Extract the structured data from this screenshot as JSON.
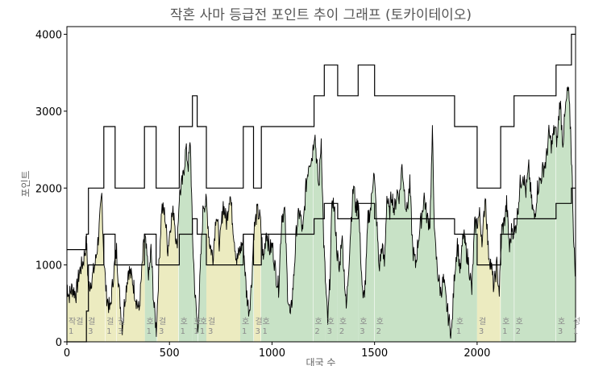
{
  "chart_data": {
    "type": "line",
    "title": "작혼 사마 등급전 포인트 추이 그래프 (토카이테이오)",
    "xlabel": "대국 수",
    "ylabel": "포인트",
    "xlim": [
      0,
      2480
    ],
    "ylim": [
      0,
      4100
    ],
    "xticks": [
      0,
      500,
      1000,
      1500,
      2000
    ],
    "yticks": [
      0,
      1000,
      2000,
      3000,
      4000
    ],
    "grid": false,
    "colors": {
      "jakgeol": "#ecebc0",
      "ho": "#c8e2c6",
      "line": "#000000",
      "threshold": "#000000"
    },
    "segments": [
      {
        "x0": 0,
        "x1": 95,
        "rank": "작걸",
        "level": "1",
        "kind": "jakgeol"
      },
      {
        "x0": 95,
        "x1": 185,
        "rank": "걸",
        "level": "3",
        "kind": "jakgeol"
      },
      {
        "x0": 185,
        "x1": 240,
        "rank": "걸",
        "level": "1",
        "kind": "jakgeol"
      },
      {
        "x0": 240,
        "x1": 380,
        "rank": "걸",
        "level": "3",
        "kind": "jakgeol"
      },
      {
        "x0": 380,
        "x1": 440,
        "rank": "호",
        "level": "1",
        "kind": "ho"
      },
      {
        "x0": 440,
        "x1": 545,
        "rank": "걸",
        "level": "3",
        "kind": "jakgeol"
      },
      {
        "x0": 545,
        "x1": 610,
        "rank": "호",
        "level": "1",
        "kind": "ho"
      },
      {
        "x0": 610,
        "x1": 640,
        "rank": "호",
        "level": "1",
        "kind": "ho"
      },
      {
        "x0": 640,
        "x1": 680,
        "rank": "호",
        "level": "1",
        "kind": "ho"
      },
      {
        "x0": 680,
        "x1": 845,
        "rank": "걸",
        "level": "3",
        "kind": "jakgeol"
      },
      {
        "x0": 845,
        "x1": 910,
        "rank": "호",
        "level": "1",
        "kind": "ho"
      },
      {
        "x0": 910,
        "x1": 945,
        "rank": "걸",
        "level": "3",
        "kind": "jakgeol"
      },
      {
        "x0": 945,
        "x1": 1200,
        "rank": "호",
        "level": "1",
        "kind": "ho"
      },
      {
        "x0": 1200,
        "x1": 1260,
        "rank": "호",
        "level": "2",
        "kind": "ho"
      },
      {
        "x0": 1260,
        "x1": 1320,
        "rank": "호",
        "level": "3",
        "kind": "ho"
      },
      {
        "x0": 1320,
        "x1": 1420,
        "rank": "호",
        "level": "2",
        "kind": "ho"
      },
      {
        "x0": 1420,
        "x1": 1500,
        "rank": "호",
        "level": "3",
        "kind": "ho"
      },
      {
        "x0": 1500,
        "x1": 1890,
        "rank": "호",
        "level": "2",
        "kind": "ho"
      },
      {
        "x0": 1890,
        "x1": 2000,
        "rank": "호",
        "level": "1",
        "kind": "ho"
      },
      {
        "x0": 2000,
        "x1": 2115,
        "rank": "걸",
        "level": "3",
        "kind": "jakgeol"
      },
      {
        "x0": 2115,
        "x1": 2180,
        "rank": "호",
        "level": "1",
        "kind": "ho"
      },
      {
        "x0": 2180,
        "x1": 2385,
        "rank": "호",
        "level": "2",
        "kind": "ho"
      },
      {
        "x0": 2385,
        "x1": 2460,
        "rank": "호",
        "level": "3",
        "kind": "ho"
      },
      {
        "x0": 2460,
        "x1": 2480,
        "rank": "성",
        "level": "1",
        "kind": "ho"
      }
    ],
    "threshold_upper": [
      [
        0,
        1200
      ],
      [
        95,
        1200
      ],
      [
        95,
        1400
      ],
      [
        105,
        1400
      ],
      [
        105,
        2000
      ],
      [
        180,
        2000
      ],
      [
        180,
        2800
      ],
      [
        235,
        2800
      ],
      [
        235,
        2000
      ],
      [
        378,
        2000
      ],
      [
        378,
        2800
      ],
      [
        435,
        2800
      ],
      [
        435,
        2000
      ],
      [
        548,
        2000
      ],
      [
        548,
        2800
      ],
      [
        612,
        2800
      ],
      [
        612,
        3200
      ],
      [
        635,
        3200
      ],
      [
        635,
        2800
      ],
      [
        680,
        2800
      ],
      [
        680,
        2000
      ],
      [
        860,
        2000
      ],
      [
        860,
        2800
      ],
      [
        910,
        2800
      ],
      [
        910,
        2000
      ],
      [
        948,
        2000
      ],
      [
        948,
        2800
      ],
      [
        1205,
        2800
      ],
      [
        1205,
        3200
      ],
      [
        1255,
        3200
      ],
      [
        1255,
        3600
      ],
      [
        1320,
        3600
      ],
      [
        1320,
        3200
      ],
      [
        1420,
        3200
      ],
      [
        1420,
        3600
      ],
      [
        1500,
        3600
      ],
      [
        1500,
        3200
      ],
      [
        1890,
        3200
      ],
      [
        1890,
        2800
      ],
      [
        2000,
        2800
      ],
      [
        2000,
        2000
      ],
      [
        2115,
        2000
      ],
      [
        2115,
        2800
      ],
      [
        2180,
        2800
      ],
      [
        2180,
        3200
      ],
      [
        2385,
        3200
      ],
      [
        2385,
        3600
      ],
      [
        2460,
        3600
      ],
      [
        2460,
        4000
      ],
      [
        2480,
        4000
      ]
    ],
    "threshold_lower": [
      [
        0,
        0
      ],
      [
        95,
        0
      ],
      [
        95,
        400
      ],
      [
        105,
        400
      ],
      [
        105,
        1000
      ],
      [
        180,
        1000
      ],
      [
        180,
        1400
      ],
      [
        235,
        1400
      ],
      [
        235,
        1000
      ],
      [
        378,
        1000
      ],
      [
        378,
        1400
      ],
      [
        435,
        1400
      ],
      [
        435,
        1000
      ],
      [
        548,
        1000
      ],
      [
        548,
        1400
      ],
      [
        612,
        1400
      ],
      [
        612,
        1600
      ],
      [
        635,
        1600
      ],
      [
        635,
        1400
      ],
      [
        680,
        1400
      ],
      [
        680,
        1000
      ],
      [
        860,
        1000
      ],
      [
        860,
        1400
      ],
      [
        910,
        1400
      ],
      [
        910,
        1000
      ],
      [
        948,
        1000
      ],
      [
        948,
        1400
      ],
      [
        1205,
        1400
      ],
      [
        1205,
        1600
      ],
      [
        1255,
        1600
      ],
      [
        1255,
        1800
      ],
      [
        1320,
        1800
      ],
      [
        1320,
        1600
      ],
      [
        1420,
        1600
      ],
      [
        1420,
        1800
      ],
      [
        1500,
        1800
      ],
      [
        1500,
        1600
      ],
      [
        1890,
        1600
      ],
      [
        1890,
        1400
      ],
      [
        2000,
        1400
      ],
      [
        2000,
        1000
      ],
      [
        2115,
        1000
      ],
      [
        2115,
        1400
      ],
      [
        2180,
        1400
      ],
      [
        2180,
        1600
      ],
      [
        2385,
        1600
      ],
      [
        2385,
        1800
      ],
      [
        2460,
        1800
      ],
      [
        2460,
        2000
      ],
      [
        2480,
        2000
      ]
    ],
    "points_key": [
      [
        0,
        750
      ],
      [
        10,
        600
      ],
      [
        25,
        700
      ],
      [
        45,
        620
      ],
      [
        60,
        900
      ],
      [
        80,
        1050
      ],
      [
        95,
        1300
      ],
      [
        105,
        700
      ],
      [
        125,
        850
      ],
      [
        140,
        1050
      ],
      [
        155,
        1400
      ],
      [
        170,
        1900
      ],
      [
        180,
        1100
      ],
      [
        192,
        620
      ],
      [
        210,
        400
      ],
      [
        228,
        900
      ],
      [
        242,
        1200
      ],
      [
        255,
        650
      ],
      [
        270,
        200
      ],
      [
        282,
        550
      ],
      [
        300,
        950
      ],
      [
        320,
        800
      ],
      [
        338,
        550
      ],
      [
        352,
        400
      ],
      [
        365,
        900
      ],
      [
        378,
        1400
      ],
      [
        388,
        1150
      ],
      [
        400,
        850
      ],
      [
        410,
        1200
      ],
      [
        425,
        450
      ],
      [
        436,
        150
      ],
      [
        448,
        950
      ],
      [
        462,
        1750
      ],
      [
        478,
        1650
      ],
      [
        492,
        1200
      ],
      [
        508,
        1600
      ],
      [
        522,
        1700
      ],
      [
        536,
        1200
      ],
      [
        548,
        1900
      ],
      [
        565,
        2100
      ],
      [
        580,
        2500
      ],
      [
        592,
        2300
      ],
      [
        602,
        2600
      ],
      [
        612,
        1400
      ],
      [
        625,
        600
      ],
      [
        638,
        150
      ],
      [
        650,
        900
      ],
      [
        665,
        1800
      ],
      [
        680,
        1800
      ],
      [
        695,
        1300
      ],
      [
        712,
        1100
      ],
      [
        728,
        1700
      ],
      [
        745,
        1250
      ],
      [
        762,
        1800
      ],
      [
        778,
        1550
      ],
      [
        795,
        1950
      ],
      [
        812,
        1450
      ],
      [
        828,
        1050
      ],
      [
        845,
        1200
      ],
      [
        860,
        1300
      ],
      [
        875,
        650
      ],
      [
        888,
        400
      ],
      [
        900,
        750
      ],
      [
        912,
        1450
      ],
      [
        928,
        1700
      ],
      [
        942,
        1600
      ],
      [
        958,
        1050
      ],
      [
        972,
        1450
      ],
      [
        988,
        1200
      ],
      [
        1002,
        1250
      ],
      [
        1018,
        900
      ],
      [
        1032,
        700
      ],
      [
        1048,
        1650
      ],
      [
        1062,
        1700
      ],
      [
        1076,
        650
      ],
      [
        1090,
        300
      ],
      [
        1105,
        800
      ],
      [
        1120,
        1500
      ],
      [
        1135,
        1700
      ],
      [
        1150,
        1400
      ],
      [
        1165,
        2000
      ],
      [
        1180,
        2350
      ],
      [
        1195,
        2400
      ],
      [
        1208,
        2750
      ],
      [
        1218,
        2350
      ],
      [
        1228,
        2000
      ],
      [
        1240,
        2650
      ],
      [
        1252,
        1300
      ],
      [
        1262,
        700
      ],
      [
        1272,
        250
      ],
      [
        1282,
        800
      ],
      [
        1294,
        1900
      ],
      [
        1306,
        1650
      ],
      [
        1318,
        1150
      ],
      [
        1328,
        900
      ],
      [
        1340,
        1400
      ],
      [
        1352,
        900
      ],
      [
        1362,
        420
      ],
      [
        1374,
        1000
      ],
      [
        1386,
        1600
      ],
      [
        1398,
        2050
      ],
      [
        1410,
        1700
      ],
      [
        1420,
        1900
      ],
      [
        1432,
        1150
      ],
      [
        1444,
        500
      ],
      [
        1456,
        800
      ],
      [
        1468,
        1600
      ],
      [
        1482,
        1750
      ],
      [
        1496,
        2250
      ],
      [
        1510,
        1600
      ],
      [
        1522,
        950
      ],
      [
        1536,
        1250
      ],
      [
        1548,
        1000
      ],
      [
        1560,
        1900
      ],
      [
        1572,
        1650
      ],
      [
        1584,
        1950
      ],
      [
        1596,
        1700
      ],
      [
        1610,
        1950
      ],
      [
        1622,
        1900
      ],
      [
        1634,
        2300
      ],
      [
        1646,
        1950
      ],
      [
        1658,
        1700
      ],
      [
        1672,
        2050
      ],
      [
        1686,
        1200
      ],
      [
        1700,
        1000
      ],
      [
        1714,
        1350
      ],
      [
        1728,
        1600
      ],
      [
        1742,
        1900
      ],
      [
        1756,
        1600
      ],
      [
        1770,
        1550
      ],
      [
        1782,
        2700
      ],
      [
        1794,
        1300
      ],
      [
        1808,
        900
      ],
      [
        1822,
        650
      ],
      [
        1836,
        800
      ],
      [
        1850,
        500
      ],
      [
        1864,
        250
      ],
      [
        1876,
        120
      ],
      [
        1890,
        900
      ],
      [
        1904,
        1300
      ],
      [
        1918,
        900
      ],
      [
        1932,
        1400
      ],
      [
        1946,
        1200
      ],
      [
        1960,
        1000
      ],
      [
        1974,
        650
      ],
      [
        1988,
        1500
      ],
      [
        2000,
        1550
      ],
      [
        2012,
        1650
      ],
      [
        2026,
        1300
      ],
      [
        2040,
        1950
      ],
      [
        2054,
        1200
      ],
      [
        2068,
        1000
      ],
      [
        2082,
        700
      ],
      [
        2096,
        1000
      ],
      [
        2108,
        650
      ],
      [
        2120,
        1450
      ],
      [
        2132,
        1550
      ],
      [
        2144,
        1800
      ],
      [
        2158,
        1200
      ],
      [
        2170,
        1500
      ],
      [
        2182,
        1400
      ],
      [
        2196,
        1650
      ],
      [
        2210,
        2050
      ],
      [
        2224,
        2200
      ],
      [
        2238,
        1950
      ],
      [
        2252,
        2250
      ],
      [
        2266,
        1800
      ],
      [
        2280,
        1600
      ],
      [
        2294,
        2000
      ],
      [
        2308,
        2100
      ],
      [
        2322,
        2250
      ],
      [
        2336,
        2350
      ],
      [
        2350,
        2700
      ],
      [
        2364,
        2550
      ],
      [
        2378,
        2800
      ],
      [
        2390,
        2600
      ],
      [
        2404,
        3150
      ],
      [
        2418,
        2600
      ],
      [
        2432,
        3050
      ],
      [
        2444,
        3300
      ],
      [
        2456,
        2750
      ],
      [
        2466,
        1900
      ],
      [
        2472,
        1200
      ],
      [
        2480,
        900
      ]
    ]
  }
}
